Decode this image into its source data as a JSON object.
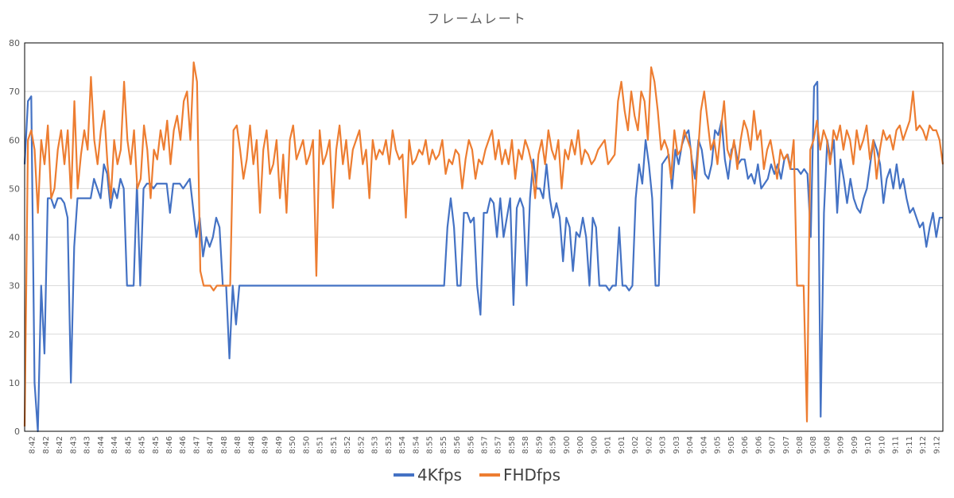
{
  "chart_data": {
    "type": "line",
    "title": "フレームレート",
    "xlabel": "",
    "ylabel": "",
    "ylim": [
      0,
      80
    ],
    "yticks": [
      0,
      10,
      20,
      30,
      40,
      50,
      60,
      70,
      80
    ],
    "grid": true,
    "legend_position": "bottom",
    "x_tick_labels": [
      "8:42",
      "8:42",
      "8:42",
      "8:43",
      "8:43",
      "8:44",
      "8:44",
      "8:45",
      "8:45",
      "8:45",
      "8:46",
      "8:46",
      "8:47",
      "8:47",
      "8:48",
      "8:48",
      "8:48",
      "8:49",
      "8:49",
      "8:50",
      "8:50",
      "8:51",
      "8:51",
      "8:52",
      "8:52",
      "8:53",
      "8:53",
      "8:54",
      "8:54",
      "8:55",
      "8:55",
      "8:56",
      "8:56",
      "8:57",
      "8:57",
      "8:58",
      "8:58",
      "8:59",
      "8:59",
      "9:00",
      "9:00",
      "9:00",
      "9:01",
      "9:01",
      "9:02",
      "9:02",
      "9:03",
      "9:03",
      "9:04",
      "9:04",
      "9:05",
      "9:05",
      "9:06",
      "9:06",
      "9:07",
      "9:07",
      "9:08",
      "9:08",
      "9:08",
      "9:09",
      "9:09",
      "9:10",
      "9:10",
      "9:11",
      "9:11",
      "9:12",
      "9:12"
    ],
    "series": [
      {
        "name": "4Kfps",
        "color": "#4472C4",
        "x_range": [
          "8:42",
          "9:12"
        ],
        "values": [
          55,
          68,
          69,
          10,
          0,
          30,
          16,
          48,
          48,
          46,
          48,
          48,
          47,
          44,
          10,
          38,
          48,
          48,
          48,
          48,
          48,
          52,
          50,
          48,
          55,
          53,
          46,
          50,
          48,
          52,
          50,
          30,
          30,
          30,
          51,
          30,
          50,
          51,
          51,
          50,
          51,
          51,
          51,
          51,
          45,
          51,
          51,
          51,
          50,
          51,
          52,
          46,
          40,
          44,
          36,
          40,
          38,
          40,
          44,
          42,
          30,
          30,
          15,
          30,
          22,
          30,
          30,
          30,
          30,
          30,
          30,
          30,
          30,
          30,
          30,
          30,
          30,
          30,
          30,
          30,
          30,
          30,
          30,
          30,
          30,
          30,
          30,
          30,
          30,
          30,
          30,
          30,
          30,
          30,
          30,
          30,
          30,
          30,
          30,
          30,
          30,
          30,
          30,
          30,
          30,
          30,
          30,
          30,
          30,
          30,
          30,
          30,
          30,
          30,
          30,
          30,
          30,
          30,
          30,
          30,
          30,
          30,
          30,
          30,
          30,
          30,
          30,
          30,
          42,
          48,
          42,
          30,
          30,
          45,
          45,
          43,
          44,
          30,
          24,
          45,
          45,
          48,
          47,
          40,
          48,
          40,
          44,
          48,
          26,
          46,
          48,
          46,
          30,
          48,
          56,
          50,
          50,
          48,
          55,
          48,
          44,
          47,
          44,
          35,
          44,
          42,
          33,
          41,
          40,
          44,
          40,
          30,
          44,
          42,
          30,
          30,
          30,
          29,
          30,
          30,
          42,
          30,
          30,
          29,
          30,
          48,
          55,
          51,
          60,
          55,
          48,
          30,
          30,
          55,
          56,
          57,
          50,
          58,
          55,
          59,
          61,
          62,
          56,
          52,
          60,
          58,
          53,
          52,
          55,
          62,
          61,
          64,
          56,
          52,
          58,
          59,
          55,
          56,
          56,
          52,
          53,
          51,
          55,
          50,
          51,
          52,
          55,
          53,
          55,
          52,
          56,
          57,
          54,
          54,
          54,
          53,
          54,
          53,
          40,
          71,
          72,
          3,
          45,
          60,
          56,
          60,
          45,
          56,
          52,
          47,
          52,
          48,
          46,
          45,
          48,
          50,
          55,
          60,
          58,
          55,
          47,
          52,
          54,
          50,
          55,
          50,
          52,
          48,
          45,
          46,
          44,
          42,
          43,
          38,
          42,
          45,
          40,
          44,
          44
        ]
      },
      {
        "name": "FHDfps",
        "color": "#ED7D31",
        "x_range": [
          "8:42",
          "9:12"
        ],
        "values": [
          1,
          60,
          62,
          58,
          45,
          60,
          55,
          63,
          48,
          50,
          58,
          62,
          55,
          62,
          48,
          68,
          50,
          57,
          62,
          58,
          73,
          60,
          55,
          62,
          66,
          55,
          48,
          60,
          55,
          58,
          72,
          60,
          55,
          62,
          50,
          52,
          63,
          58,
          48,
          58,
          56,
          62,
          58,
          64,
          55,
          62,
          65,
          60,
          68,
          70,
          60,
          76,
          72,
          33,
          30,
          30,
          30,
          29,
          30,
          30,
          30,
          30,
          30,
          62,
          63,
          58,
          52,
          56,
          63,
          55,
          60,
          45,
          58,
          62,
          53,
          55,
          60,
          48,
          57,
          45,
          60,
          63,
          56,
          58,
          60,
          55,
          57,
          60,
          32,
          62,
          55,
          57,
          60,
          46,
          58,
          63,
          55,
          60,
          52,
          58,
          60,
          62,
          55,
          58,
          48,
          60,
          56,
          58,
          57,
          60,
          55,
          62,
          58,
          56,
          57,
          44,
          60,
          55,
          56,
          58,
          57,
          60,
          55,
          58,
          56,
          57,
          60,
          53,
          56,
          55,
          58,
          57,
          50,
          56,
          60,
          58,
          52,
          56,
          55,
          58,
          60,
          62,
          56,
          60,
          55,
          58,
          55,
          60,
          52,
          58,
          56,
          60,
          58,
          55,
          48,
          57,
          60,
          55,
          62,
          58,
          56,
          60,
          50,
          58,
          56,
          60,
          57,
          62,
          55,
          58,
          57,
          55,
          56,
          58,
          59,
          60,
          55,
          56,
          57,
          68,
          72,
          66,
          62,
          70,
          65,
          62,
          70,
          68,
          60,
          75,
          72,
          66,
          58,
          60,
          58,
          52,
          62,
          57,
          58,
          62,
          60,
          58,
          45,
          56,
          66,
          70,
          64,
          58,
          60,
          55,
          62,
          68,
          58,
          56,
          60,
          54,
          60,
          64,
          62,
          58,
          66,
          60,
          62,
          54,
          58,
          60,
          56,
          52,
          58,
          56,
          57,
          54,
          60,
          30,
          30,
          30,
          2,
          58,
          60,
          64,
          58,
          62,
          60,
          55,
          62,
          60,
          63,
          58,
          62,
          60,
          55,
          62,
          58,
          60,
          63,
          56,
          60,
          52,
          58,
          62,
          60,
          61,
          58,
          62,
          63,
          60,
          62,
          64,
          70,
          62,
          63,
          62,
          60,
          63,
          62,
          62,
          60,
          55
        ]
      }
    ]
  }
}
